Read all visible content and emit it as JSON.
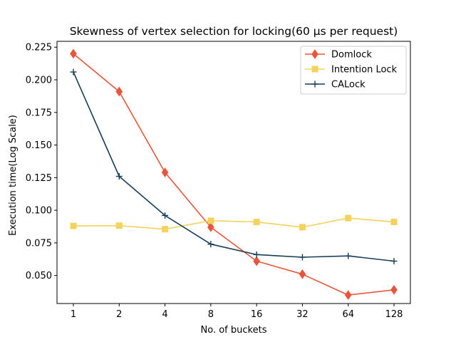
{
  "chart_data": {
    "type": "line",
    "title": "Skewness of vertex selection for locking(60 μs per request)",
    "xlabel": "No. of buckets",
    "ylabel": "Execution time(Log Scale)",
    "categories": [
      "1",
      "2",
      "4",
      "8",
      "16",
      "32",
      "64",
      "128"
    ],
    "yticks": [
      "0.050",
      "0.075",
      "0.100",
      "0.125",
      "0.150",
      "0.175",
      "0.200",
      "0.225"
    ],
    "ylim": [
      0.0285,
      0.2295
    ],
    "grid": false,
    "legend_position": "top-right",
    "series": [
      {
        "name": "Domlock",
        "color": "#e8553a",
        "marker": "diamond",
        "values": [
          0.22,
          0.191,
          0.129,
          0.087,
          0.061,
          0.051,
          0.035,
          0.039
        ]
      },
      {
        "name": "Intention Lock",
        "color": "#f3d35b",
        "marker": "square",
        "values": [
          0.088,
          0.0882,
          0.0855,
          0.092,
          0.091,
          0.087,
          0.094,
          0.091
        ]
      },
      {
        "name": "CALock",
        "color": "#173d5c",
        "marker": "plus",
        "values": [
          0.206,
          0.126,
          0.096,
          0.074,
          0.066,
          0.064,
          0.065,
          0.061
        ]
      }
    ]
  }
}
